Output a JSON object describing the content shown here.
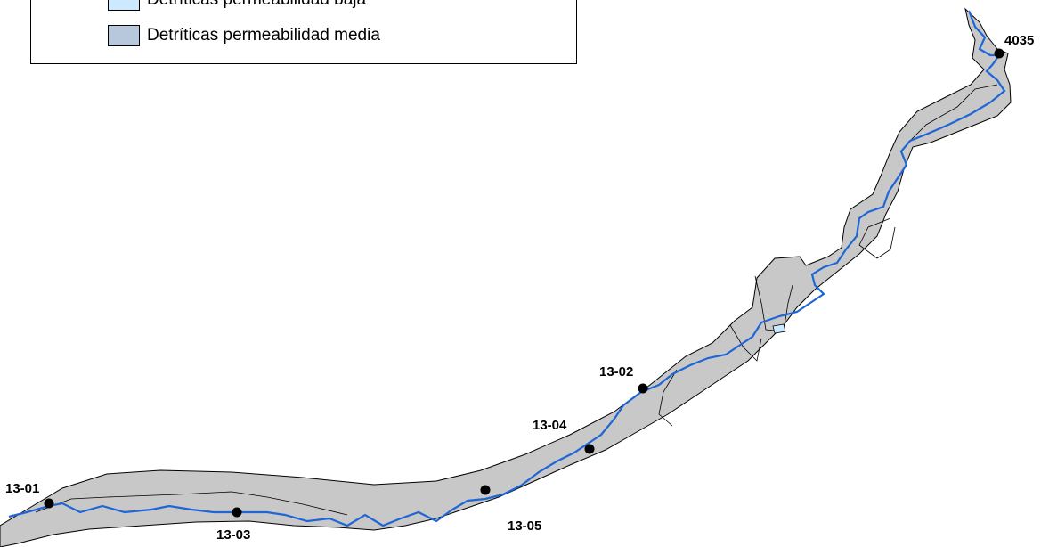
{
  "legend": {
    "items": [
      {
        "label": "Detríticas permeabilidad baja",
        "color": "#cde9ff"
      },
      {
        "label": "Detríticas permeabilidad media",
        "color": "#b8c8dc"
      }
    ]
  },
  "map": {
    "aquifer_fill": "#c8c8c8",
    "river_color": "#1e66d6",
    "stations": [
      {
        "id": "4035"
      },
      {
        "id": "13-02"
      },
      {
        "id": "13-04"
      },
      {
        "id": "13-01"
      },
      {
        "id": "13-03"
      },
      {
        "id": "13-05"
      }
    ]
  }
}
